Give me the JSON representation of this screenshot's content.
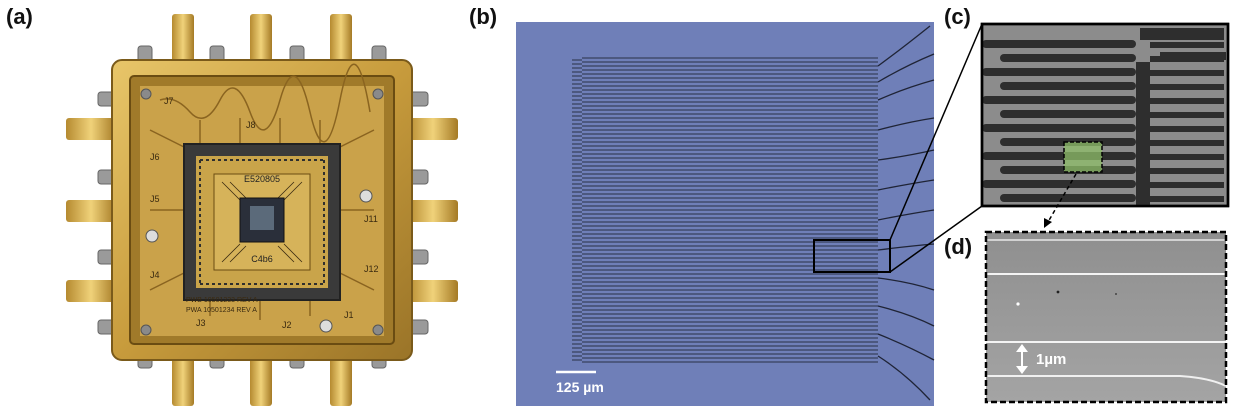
{
  "panels": {
    "a": {
      "label": "(a)"
    },
    "b": {
      "label": "(b)",
      "scale_bar": "125 µm"
    },
    "c": {
      "label": "(c)"
    },
    "d": {
      "label": "(d)",
      "dimension": "1µm"
    }
  },
  "board": {
    "markings": [
      "J1",
      "J2",
      "J3",
      "J4",
      "J5",
      "J6",
      "J7",
      "J8",
      "J11",
      "J12"
    ],
    "pwb_text": "PWB 10501233 REV A",
    "pwa_text": "PWA 10501234 REV A",
    "chip_text_top": "E520805",
    "chip_text_bottom": "C4b6"
  },
  "colors": {
    "gold": "#c9a34a",
    "micrograph_blue": "#6f7fb8",
    "sem_gray": "#9a9a9a",
    "highlight_green": "#8fbf6a"
  }
}
